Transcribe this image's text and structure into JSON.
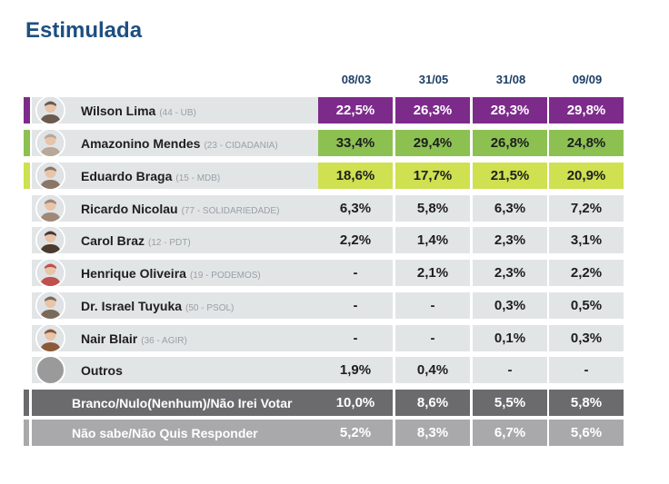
{
  "title": "Estimulada",
  "chart_data": {
    "type": "table",
    "title": "Estimulada",
    "dates": [
      "08/03",
      "31/05",
      "31/08",
      "09/09"
    ],
    "rows": [
      {
        "name": "Wilson Lima",
        "party": "(44 - UB)",
        "values": [
          "22,5%",
          "26,3%",
          "28,3%",
          "29,8%"
        ],
        "color": "#7d2b8b",
        "highlight": true,
        "avatar_bg": "#6b5a4e"
      },
      {
        "name": "Amazonino Mendes",
        "party": "(23 - CIDADANIA)",
        "values": [
          "33,4%",
          "29,4%",
          "26,8%",
          "24,8%"
        ],
        "color": "#8cc152",
        "highlight": true,
        "avatar_bg": "#b8a89a"
      },
      {
        "name": "Eduardo Braga",
        "party": "(15 - MDB)",
        "values": [
          "18,6%",
          "17,7%",
          "21,5%",
          "20,9%"
        ],
        "color": "#cfe050",
        "highlight": true,
        "avatar_bg": "#8a7666"
      },
      {
        "name": "Ricardo Nicolau",
        "party": "(77 - SOLIDARIEDADE)",
        "values": [
          "6,3%",
          "5,8%",
          "6,3%",
          "7,2%"
        ],
        "color": "#e2e5e6",
        "highlight": false,
        "avatar_bg": "#a08878"
      },
      {
        "name": "Carol Braz",
        "party": "(12 - PDT)",
        "values": [
          "2,2%",
          "1,4%",
          "2,3%",
          "3,1%"
        ],
        "color": "#e2e5e6",
        "highlight": false,
        "avatar_bg": "#4a3a30"
      },
      {
        "name": "Henrique Oliveira",
        "party": "(19 - PODEMOS)",
        "values": [
          "-",
          "2,1%",
          "2,3%",
          "2,2%"
        ],
        "color": "#e2e5e6",
        "highlight": false,
        "avatar_bg": "#c0504d"
      },
      {
        "name": "Dr. Israel Tuyuka",
        "party": "(50 - PSOL)",
        "values": [
          "-",
          "-",
          "0,3%",
          "0,5%"
        ],
        "color": "#e2e5e6",
        "highlight": false,
        "avatar_bg": "#7a6a5a"
      },
      {
        "name": "Nair Blair",
        "party": "(36 - AGIR)",
        "values": [
          "-",
          "-",
          "0,1%",
          "0,3%"
        ],
        "color": "#e2e5e6",
        "highlight": false,
        "avatar_bg": "#8a5a3a"
      },
      {
        "name": "Outros",
        "party": "",
        "values": [
          "1,9%",
          "0,4%",
          "-",
          "-"
        ],
        "color": "#e2e5e6",
        "highlight": false,
        "avatar_bg": "#9a9a9a"
      }
    ],
    "summary_rows": [
      {
        "label": "Branco/Nulo(Nenhum)/Não Irei Votar",
        "values": [
          "10,0%",
          "8,6%",
          "5,5%",
          "5,8%"
        ],
        "color": "#6b6b6e"
      },
      {
        "label": "Não sabe/Não Quis Responder",
        "values": [
          "5,2%",
          "8,3%",
          "6,7%",
          "5,6%"
        ],
        "color": "#a9a9ac"
      }
    ]
  }
}
